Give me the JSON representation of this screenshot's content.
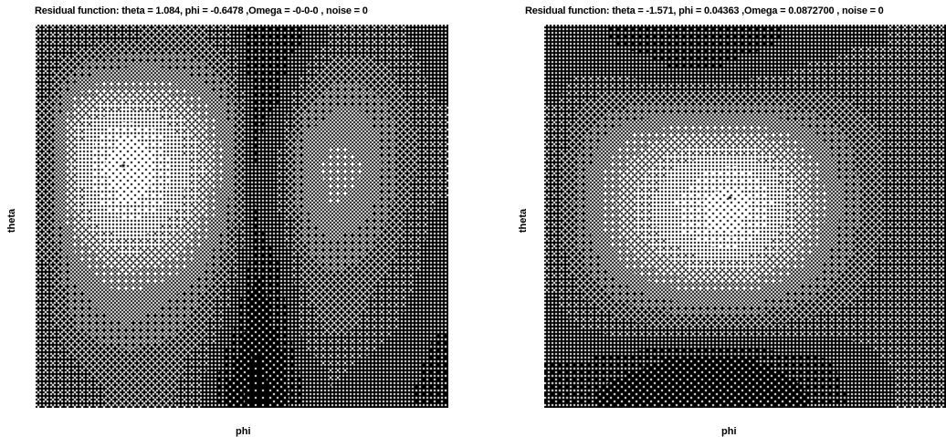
{
  "chart_data": [
    {
      "type": "heatmap",
      "title": "Residual function: theta = 1.084, phi = -0.6478 ,Omega = -0-0-0 ,  noise = 0",
      "xlabel": "phi",
      "ylabel": "theta",
      "minimum_marker": "*",
      "colormap": "grayscale-dithered",
      "grid": false,
      "values": [
        [
          0.3,
          0.3,
          0.33,
          0.33,
          0.36,
          0.36,
          0.35,
          0.3,
          0.18,
          0.18,
          0.22,
          0.3,
          0.32,
          0.3,
          0.28,
          0.25
        ],
        [
          0.32,
          0.42,
          0.48,
          0.5,
          0.5,
          0.48,
          0.44,
          0.36,
          0.16,
          0.2,
          0.3,
          0.38,
          0.38,
          0.36,
          0.3,
          0.26
        ],
        [
          0.35,
          0.58,
          0.66,
          0.7,
          0.68,
          0.62,
          0.55,
          0.44,
          0.18,
          0.22,
          0.4,
          0.46,
          0.46,
          0.42,
          0.34,
          0.28
        ],
        [
          0.38,
          0.68,
          0.8,
          0.86,
          0.82,
          0.72,
          0.62,
          0.48,
          0.2,
          0.28,
          0.48,
          0.52,
          0.52,
          0.46,
          0.36,
          0.3
        ],
        [
          0.38,
          0.7,
          0.84,
          0.9,
          0.86,
          0.76,
          0.66,
          0.5,
          0.22,
          0.3,
          0.5,
          0.56,
          0.54,
          0.46,
          0.36,
          0.3
        ],
        [
          0.38,
          0.66,
          0.8,
          0.86,
          0.82,
          0.74,
          0.62,
          0.46,
          0.22,
          0.3,
          0.48,
          0.54,
          0.52,
          0.44,
          0.34,
          0.28
        ],
        [
          0.36,
          0.58,
          0.7,
          0.74,
          0.72,
          0.66,
          0.56,
          0.42,
          0.2,
          0.26,
          0.44,
          0.48,
          0.46,
          0.4,
          0.32,
          0.26
        ],
        [
          0.34,
          0.5,
          0.58,
          0.62,
          0.6,
          0.56,
          0.48,
          0.36,
          0.16,
          0.22,
          0.38,
          0.42,
          0.4,
          0.36,
          0.3,
          0.25
        ],
        [
          0.33,
          0.44,
          0.5,
          0.52,
          0.5,
          0.46,
          0.4,
          0.3,
          0.12,
          0.2,
          0.34,
          0.38,
          0.36,
          0.32,
          0.28,
          0.24
        ],
        [
          0.32,
          0.4,
          0.44,
          0.46,
          0.44,
          0.42,
          0.36,
          0.24,
          0.1,
          0.18,
          0.32,
          0.36,
          0.34,
          0.3,
          0.26,
          0.22
        ],
        [
          0.3,
          0.34,
          0.36,
          0.38,
          0.38,
          0.36,
          0.3,
          0.18,
          0.08,
          0.14,
          0.26,
          0.3,
          0.28,
          0.26,
          0.24,
          0.2
        ],
        [
          0.3,
          0.32,
          0.34,
          0.36,
          0.36,
          0.34,
          0.28,
          0.14,
          0.06,
          0.12,
          0.24,
          0.28,
          0.26,
          0.24,
          0.22,
          0.2
        ]
      ]
    },
    {
      "type": "heatmap",
      "title": "Residual function: theta = -1.571, phi = 0.04363 ,Omega = 0.0872700 ,  noise = 0",
      "xlabel": "phi",
      "ylabel": "theta",
      "minimum_marker": "*",
      "colormap": "grayscale-dithered",
      "grid": false,
      "values": [
        [
          0.26,
          0.24,
          0.22,
          0.2,
          0.18,
          0.16,
          0.16,
          0.18,
          0.2,
          0.22,
          0.24,
          0.26,
          0.28,
          0.28,
          0.3,
          0.32
        ],
        [
          0.26,
          0.28,
          0.28,
          0.26,
          0.24,
          0.22,
          0.22,
          0.24,
          0.26,
          0.28,
          0.3,
          0.3,
          0.3,
          0.3,
          0.3,
          0.32
        ],
        [
          0.28,
          0.34,
          0.38,
          0.4,
          0.4,
          0.4,
          0.4,
          0.4,
          0.4,
          0.4,
          0.38,
          0.36,
          0.34,
          0.32,
          0.3,
          0.32
        ],
        [
          0.3,
          0.4,
          0.48,
          0.54,
          0.58,
          0.6,
          0.62,
          0.62,
          0.6,
          0.56,
          0.5,
          0.44,
          0.38,
          0.34,
          0.3,
          0.32
        ],
        [
          0.32,
          0.44,
          0.54,
          0.62,
          0.68,
          0.74,
          0.78,
          0.8,
          0.76,
          0.68,
          0.58,
          0.48,
          0.4,
          0.34,
          0.3,
          0.32
        ],
        [
          0.32,
          0.46,
          0.56,
          0.66,
          0.74,
          0.8,
          0.86,
          0.88,
          0.84,
          0.74,
          0.62,
          0.5,
          0.42,
          0.34,
          0.3,
          0.32
        ],
        [
          0.32,
          0.44,
          0.54,
          0.64,
          0.72,
          0.78,
          0.84,
          0.86,
          0.8,
          0.7,
          0.6,
          0.48,
          0.4,
          0.34,
          0.3,
          0.32
        ],
        [
          0.3,
          0.4,
          0.48,
          0.56,
          0.62,
          0.66,
          0.7,
          0.7,
          0.66,
          0.6,
          0.52,
          0.44,
          0.38,
          0.32,
          0.3,
          0.32
        ],
        [
          0.28,
          0.34,
          0.4,
          0.44,
          0.48,
          0.5,
          0.52,
          0.52,
          0.5,
          0.46,
          0.42,
          0.38,
          0.34,
          0.3,
          0.3,
          0.32
        ],
        [
          0.26,
          0.28,
          0.3,
          0.32,
          0.32,
          0.32,
          0.32,
          0.32,
          0.32,
          0.32,
          0.3,
          0.3,
          0.3,
          0.3,
          0.3,
          0.32
        ],
        [
          0.22,
          0.22,
          0.2,
          0.18,
          0.16,
          0.14,
          0.14,
          0.14,
          0.16,
          0.18,
          0.2,
          0.22,
          0.26,
          0.28,
          0.3,
          0.32
        ],
        [
          0.2,
          0.18,
          0.14,
          0.12,
          0.1,
          0.1,
          0.1,
          0.1,
          0.1,
          0.12,
          0.16,
          0.2,
          0.24,
          0.26,
          0.3,
          0.32
        ]
      ]
    }
  ]
}
